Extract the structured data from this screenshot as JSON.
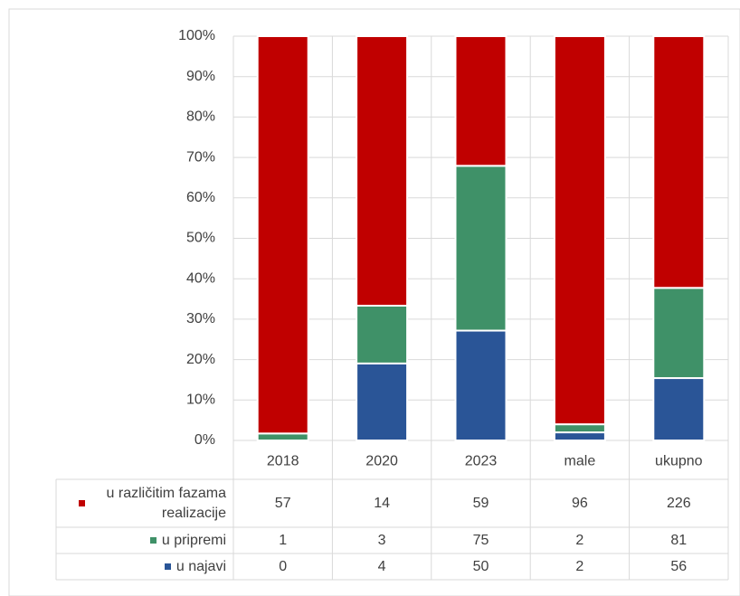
{
  "chart_data": {
    "type": "bar",
    "stacking": "percent",
    "categories": [
      "2018",
      "2020",
      "2023",
      "male",
      "ukupno"
    ],
    "series": [
      {
        "name": "u različitim fazama realizacije",
        "color": "#c00000",
        "values": [
          57,
          14,
          59,
          96,
          226
        ]
      },
      {
        "name": "u pripremi",
        "color": "#3f9168",
        "values": [
          1,
          3,
          75,
          2,
          81
        ]
      },
      {
        "name": "u najavi",
        "color": "#2a5597",
        "values": [
          0,
          4,
          50,
          2,
          56
        ]
      }
    ],
    "ylim": [
      0,
      100
    ],
    "yticks": [
      {
        "value": 0,
        "label": "0%"
      },
      {
        "value": 10,
        "label": "10%"
      },
      {
        "value": 20,
        "label": "20%"
      },
      {
        "value": 30,
        "label": "30%"
      },
      {
        "value": 40,
        "label": "40%"
      },
      {
        "value": 50,
        "label": "50%"
      },
      {
        "value": 60,
        "label": "60%"
      },
      {
        "value": 70,
        "label": "70%"
      },
      {
        "value": 80,
        "label": "80%"
      },
      {
        "value": 90,
        "label": "90%"
      },
      {
        "value": 100,
        "label": "100%"
      }
    ],
    "grid": true,
    "legend": "table"
  }
}
